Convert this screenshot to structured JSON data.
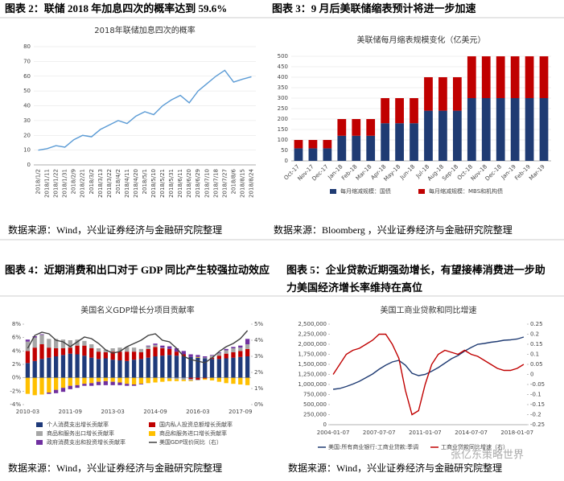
{
  "panels": [
    {
      "caption": "图表 2：联储 2018 年加息四次的概率达到 59.6%",
      "source": "数据来源：Wind，兴业证券经济与金融研究院整理"
    },
    {
      "caption": "图表 3：9 月后美联储缩表预计将进一步加速",
      "source": "数据来源：Bloomberg ，兴业证券经济与金融研究院整理"
    },
    {
      "caption": "图表 4：近期消费和出口对于 GDP 同比产生较强拉动效应",
      "source": "数据来源：Wind，兴业证券经济与金融研究院整理"
    },
    {
      "caption": "图表 5：企业贷款近期强劲增长，有望接棒消费进一步助力美国经济增长率维持在高位",
      "source": "数据来源：Wind，兴业证券经济与金融研究院整理"
    }
  ],
  "watermark": "张亿东策略世界",
  "chart_data": [
    {
      "type": "line",
      "title": "2018年联储加息四次的概率",
      "color": "#5b9bd5",
      "grid": true,
      "x_tick_rotation": -90,
      "categories": [
        "2018/1/2",
        "2018/1/11",
        "2018/1/22",
        "2018/1/31",
        "2018/2/9",
        "2018/2/21",
        "2018/3/2",
        "2018/3/13",
        "2018/3/22",
        "2018/4/2",
        "2018/4/11",
        "2018/4/20",
        "2018/5/1",
        "2018/5/10",
        "2018/5/21",
        "2018/5/31",
        "2018/6/11",
        "2018/6/20",
        "2018/6/29",
        "2018/7/10",
        "2018/7/18",
        "2018/7/27",
        "2018/8/6",
        "2018/8/15",
        "2018/8/24"
      ],
      "values": [
        10,
        11,
        13,
        12,
        17,
        20,
        19,
        24,
        27,
        30,
        28,
        33,
        36,
        34,
        40,
        44,
        47,
        42,
        50,
        55,
        60,
        64,
        56,
        58,
        59.6
      ],
      "ylim": [
        0,
        80
      ],
      "yticks": [
        0,
        10,
        20,
        30,
        40,
        50,
        60,
        70,
        80
      ]
    },
    {
      "type": "bar",
      "title": "美联储每月缩表规模变化（亿美元）",
      "stacked": true,
      "grid": true,
      "x_tick_rotation": -45,
      "categories": [
        "Oct-17",
        "Nov-17",
        "Dec-17",
        "Jan-18",
        "Feb-18",
        "Mar-18",
        "Apr-18",
        "May-18",
        "Jun-18",
        "Jul-18",
        "Aug-18",
        "Sep-18",
        "Oct-18",
        "Nov-18",
        "Dec-18",
        "Jan-19",
        "Feb-19",
        "Mar-19"
      ],
      "series": [
        {
          "name": "每月缩减规模：国债",
          "color": "#1f3b73",
          "values": [
            60,
            60,
            60,
            120,
            120,
            120,
            180,
            180,
            180,
            240,
            240,
            240,
            300,
            300,
            300,
            300,
            300,
            300
          ]
        },
        {
          "name": "每月缩减规模：MBS和机构债",
          "color": "#c00000",
          "values": [
            40,
            40,
            40,
            80,
            80,
            80,
            120,
            120,
            120,
            160,
            160,
            160,
            200,
            200,
            200,
            200,
            200,
            200
          ]
        }
      ],
      "ylim": [
        0,
        500
      ],
      "yticks": [
        0,
        50,
        100,
        150,
        200,
        250,
        300,
        350,
        400,
        450,
        500
      ]
    },
    {
      "type": "bar",
      "title": "美国名义GDP增长分项目贡献率",
      "stacked": true,
      "grid": false,
      "categories": [
        "2010-03",
        null,
        null,
        null,
        null,
        null,
        "2011-09",
        null,
        null,
        null,
        null,
        null,
        "2013-03",
        null,
        null,
        null,
        null,
        null,
        "2014-09",
        null,
        null,
        null,
        null,
        null,
        "2016-03",
        null,
        null,
        null,
        null,
        null,
        "2017-09",
        null
      ],
      "series": [
        {
          "name": "个人消费支出增长贡献率",
          "color": "#1f3a7a",
          "values": [
            2.2,
            2.5,
            2.8,
            3.0,
            3.2,
            3.4,
            3.6,
            3.5,
            3.3,
            3.0,
            2.8,
            2.9,
            2.7,
            2.6,
            2.5,
            2.7,
            2.8,
            3.0,
            3.2,
            3.3,
            3.4,
            3.3,
            3.2,
            3.1,
            3.0,
            2.9,
            2.8,
            2.8,
            2.9,
            3.0,
            3.1,
            3.2
          ]
        },
        {
          "name": "国内私人投资总额增长贡献率",
          "color": "#c00000",
          "values": [
            1.8,
            2.0,
            2.2,
            1.5,
            1.2,
            1.0,
            0.9,
            1.3,
            1.5,
            1.4,
            1.1,
            0.9,
            1.2,
            1.3,
            1.4,
            1.2,
            1.0,
            1.3,
            1.4,
            1.1,
            0.9,
            0.6,
            0.3,
            -0.2,
            -0.3,
            -0.1,
            0.2,
            0.5,
            0.7,
            0.8,
            0.9,
            1.1
          ]
        },
        {
          "name": "商品和服务出口增长贡献率",
          "color": "#a6a6a6",
          "values": [
            1.4,
            1.5,
            1.4,
            1.3,
            1.4,
            1.3,
            1.1,
            0.9,
            0.7,
            0.6,
            0.5,
            0.4,
            0.5,
            0.6,
            0.7,
            0.6,
            0.5,
            0.4,
            0.3,
            0.1,
            -0.1,
            -0.2,
            -0.3,
            -0.2,
            -0.1,
            0.1,
            0.3,
            0.4,
            0.5,
            0.6,
            0.5,
            0.7
          ]
        },
        {
          "name": "商品和服务进口增长贡献率",
          "color": "#ffc000",
          "values": [
            -2.4,
            -2.6,
            -2.5,
            -2.2,
            -1.8,
            -1.5,
            -1.2,
            -1.1,
            -0.9,
            -0.8,
            -0.6,
            -0.5,
            -0.6,
            -0.7,
            -0.9,
            -1.0,
            -0.9,
            -0.8,
            -0.7,
            -0.6,
            -0.4,
            -0.3,
            -0.2,
            -0.1,
            0.1,
            -0.2,
            -0.4,
            -0.6,
            -0.8,
            -0.9,
            -1.0,
            -1.1
          ]
        },
        {
          "name": "政府消费支出和投资增长贡献率",
          "color": "#7030a0",
          "values": [
            0.3,
            0.2,
            0.1,
            -0.2,
            -0.5,
            -0.6,
            -0.5,
            -0.4,
            -0.3,
            -0.4,
            -0.5,
            -0.6,
            -0.5,
            -0.4,
            -0.3,
            -0.2,
            -0.1,
            0.1,
            0.2,
            0.3,
            0.4,
            0.5,
            0.5,
            0.4,
            0.3,
            0.2,
            0.1,
            0.1,
            0.2,
            0.2,
            0.3,
            0.8
          ]
        },
        {
          "name": "美国GDP现价同比（右）",
          "type": "line",
          "axis": "y2",
          "color": "#404040",
          "values": [
            3.5,
            4.3,
            4.5,
            4.4,
            4.0,
            3.9,
            3.6,
            3.9,
            4.2,
            4.1,
            3.8,
            3.4,
            3.2,
            3.3,
            3.6,
            3.8,
            4.0,
            4.3,
            4.4,
            4.0,
            3.9,
            3.5,
            3.0,
            2.8,
            2.7,
            2.6,
            2.9,
            3.3,
            3.6,
            3.8,
            4.1,
            4.6
          ]
        }
      ],
      "ylim": [
        -4,
        8
      ],
      "yticks": [
        {
          "value": -4,
          "label": "-4%"
        },
        {
          "value": -2,
          "label": "-2%"
        },
        {
          "value": 0,
          "label": "0%"
        },
        {
          "value": 2,
          "label": "2%"
        },
        {
          "value": 4,
          "label": "4%"
        },
        {
          "value": 6,
          "label": "6%"
        },
        {
          "value": 8,
          "label": "8%"
        }
      ],
      "y2lim": [
        0,
        5
      ],
      "y2ticks": [
        {
          "value": 0,
          "label": "0%"
        },
        {
          "value": 1,
          "label": "1%"
        },
        {
          "value": 2,
          "label": "2%"
        },
        {
          "value": 3,
          "label": "3%"
        },
        {
          "value": 4,
          "label": "4%"
        },
        {
          "value": 5,
          "label": "5%"
        }
      ]
    },
    {
      "type": "line",
      "title": "美国工商业贷款和同比增速",
      "grid": false,
      "categories": [
        "2004-01-07",
        null,
        null,
        null,
        null,
        null,
        null,
        "2007-07-07",
        null,
        null,
        null,
        null,
        null,
        null,
        "2011-01-07",
        null,
        null,
        null,
        null,
        null,
        null,
        "2014-07-07",
        null,
        null,
        null,
        null,
        null,
        null,
        "2018-01-07",
        null
      ],
      "series": [
        {
          "name": "美国:所有商业银行:工商业贷款:季调",
          "color": "#1f3b73",
          "values": [
            880000,
            900000,
            950000,
            1010000,
            1080000,
            1170000,
            1260000,
            1380000,
            1480000,
            1560000,
            1600000,
            1480000,
            1280000,
            1220000,
            1250000,
            1330000,
            1420000,
            1530000,
            1640000,
            1720000,
            1830000,
            1920000,
            2000000,
            2020000,
            2050000,
            2070000,
            2100000,
            2110000,
            2130000,
            2180000
          ]
        },
        {
          "name": "工商业贷款同比增速（右）",
          "axis": "y2",
          "color": "#c00000",
          "values": [
            0.0,
            0.05,
            0.1,
            0.12,
            0.13,
            0.15,
            0.17,
            0.2,
            0.2,
            0.15,
            0.08,
            -0.08,
            -0.2,
            -0.18,
            -0.05,
            0.05,
            0.1,
            0.12,
            0.11,
            0.1,
            0.12,
            0.1,
            0.09,
            0.07,
            0.05,
            0.03,
            0.02,
            0.02,
            0.03,
            0.05
          ]
        }
      ],
      "ylim": [
        0,
        2500000
      ],
      "yticks": [
        0,
        {
          "value": 250000,
          "label": "250,000"
        },
        {
          "value": 500000,
          "label": "500,000"
        },
        {
          "value": 750000,
          "label": "750,000"
        },
        {
          "value": 1000000,
          "label": "1,000,000"
        },
        {
          "value": 1250000,
          "label": "1,250,000"
        },
        {
          "value": 1500000,
          "label": "1,500,000"
        },
        {
          "value": 1750000,
          "label": "1,750,000"
        },
        {
          "value": 2000000,
          "label": "2,000,000"
        },
        {
          "value": 2250000,
          "label": "2,250,000"
        },
        {
          "value": 2500000,
          "label": "2,500,000"
        }
      ],
      "y2lim": [
        -0.25,
        0.25
      ],
      "y2ticks": [
        -0.25,
        -0.2,
        -0.15,
        -0.1,
        -0.05,
        0,
        0.05,
        0.1,
        0.15,
        0.2,
        0.25
      ]
    }
  ]
}
